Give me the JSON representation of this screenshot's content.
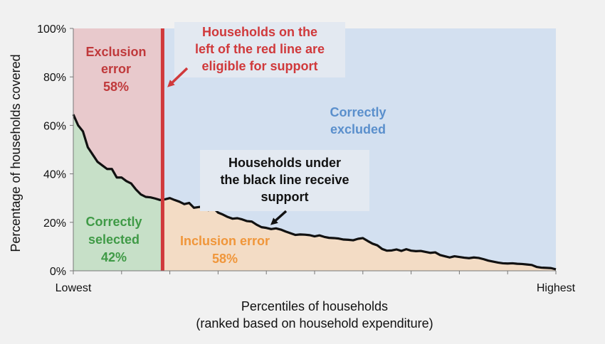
{
  "chart_data": {
    "type": "area",
    "xlabel": "Percentiles of households",
    "xlabel_sub": "(ranked based on household expenditure)",
    "ylabel": "Percentage of households covered",
    "ylim": [
      0,
      100
    ],
    "y_ticks": [
      "0%",
      "20%",
      "40%",
      "60%",
      "80%",
      "100%"
    ],
    "x_tick_labels": {
      "left": "Lowest",
      "right": "Highest"
    },
    "xlim": [
      0,
      100
    ],
    "eligibility_cutoff_percentile": 18.5,
    "series": [
      {
        "values": [
          [
            0,
            64.5
          ],
          [
            1,
            60
          ],
          [
            2,
            57.5
          ],
          [
            3,
            51
          ],
          [
            4,
            48
          ],
          [
            5,
            45
          ],
          [
            6,
            43.5
          ],
          [
            7,
            42
          ],
          [
            8,
            42
          ],
          [
            9,
            38.5
          ],
          [
            10,
            38.5
          ],
          [
            11,
            37
          ],
          [
            12,
            36
          ],
          [
            13,
            33.5
          ],
          [
            14,
            31.5
          ],
          [
            15,
            30.5
          ],
          [
            16,
            30.3
          ],
          [
            17,
            29.8
          ],
          [
            18,
            29.2
          ],
          [
            19,
            29.5
          ],
          [
            20,
            30
          ],
          [
            21,
            29.2
          ],
          [
            22,
            28.5
          ],
          [
            23,
            27.5
          ],
          [
            24,
            28
          ],
          [
            25,
            26
          ],
          [
            26,
            26.3
          ],
          [
            27,
            26.5
          ],
          [
            28,
            25
          ],
          [
            29,
            26
          ],
          [
            30,
            24
          ],
          [
            31,
            23.2
          ],
          [
            32,
            22.2
          ],
          [
            33,
            21.5
          ],
          [
            34,
            21.7
          ],
          [
            35,
            21.2
          ],
          [
            36,
            20.5
          ],
          [
            37,
            20.3
          ],
          [
            38,
            19
          ],
          [
            39,
            18
          ],
          [
            40,
            17.7
          ],
          [
            41,
            17.2
          ],
          [
            42,
            17.5
          ],
          [
            43,
            17
          ],
          [
            44,
            16.2
          ],
          [
            45,
            15.5
          ],
          [
            46,
            14.8
          ],
          [
            47,
            15
          ],
          [
            48,
            14.9
          ],
          [
            49,
            14.7
          ],
          [
            50,
            14.2
          ],
          [
            51,
            14.6
          ],
          [
            52,
            14
          ],
          [
            53,
            13.6
          ],
          [
            54,
            13.5
          ],
          [
            55,
            13.3
          ],
          [
            56,
            12.9
          ],
          [
            57,
            12.8
          ],
          [
            58,
            12.6
          ],
          [
            59,
            13.2
          ],
          [
            60,
            13.5
          ],
          [
            61,
            12.3
          ],
          [
            62,
            11.2
          ],
          [
            63,
            10.5
          ],
          [
            64,
            9
          ],
          [
            65,
            8.3
          ],
          [
            66,
            8.4
          ],
          [
            67,
            8.8
          ],
          [
            68,
            8.2
          ],
          [
            69,
            8.9
          ],
          [
            70,
            8.3
          ],
          [
            71,
            8.1
          ],
          [
            72,
            8.2
          ],
          [
            73,
            7.8
          ],
          [
            74,
            7.4
          ],
          [
            75,
            7.6
          ],
          [
            76,
            6.5
          ],
          [
            77,
            6
          ],
          [
            78,
            5.5
          ],
          [
            79,
            6
          ],
          [
            80,
            5.7
          ],
          [
            81,
            5.4
          ],
          [
            82,
            5.2
          ],
          [
            83,
            5.5
          ],
          [
            84,
            5.3
          ],
          [
            85,
            4.8
          ],
          [
            86,
            4.2
          ],
          [
            87,
            3.8
          ],
          [
            88,
            3.4
          ],
          [
            89,
            3.1
          ],
          [
            90,
            3
          ],
          [
            91,
            3.1
          ],
          [
            92,
            2.9
          ],
          [
            93,
            2.8
          ],
          [
            94,
            2.6
          ],
          [
            95,
            2.4
          ],
          [
            96,
            1.6
          ],
          [
            97,
            1.3
          ],
          [
            98,
            1.2
          ],
          [
            99,
            1.1
          ],
          [
            100,
            0.6
          ]
        ]
      }
    ],
    "regions": {
      "exclusion": {
        "line1": "Exclusion",
        "line2": "error",
        "value": "58%",
        "fill": "#e8c9cc",
        "text_color": "#c0393b"
      },
      "correctly_excluded": {
        "line1": "Correctly",
        "line2": "excluded",
        "fill": "#d3e0f0",
        "text_color": "#5a8fcc"
      },
      "correctly_selected": {
        "line1": "Correctly",
        "line2": "selected",
        "value": "42%",
        "fill": "#c7e0c8",
        "text_color": "#3f9a46"
      },
      "inclusion": {
        "label": "Inclusion error",
        "value": "58%",
        "fill": "#f3dcc5",
        "text_color": "#f0963a"
      }
    },
    "annotations": {
      "red_line_note": [
        "Households on the",
        "left of the red line are",
        "eligible for support"
      ],
      "black_line_note": [
        "Households under",
        "the black line receive",
        "support"
      ]
    },
    "colors": {
      "cutoff_line": "#d0393b",
      "curve": "#111111",
      "annotation_box": "#e3e9f1"
    }
  }
}
